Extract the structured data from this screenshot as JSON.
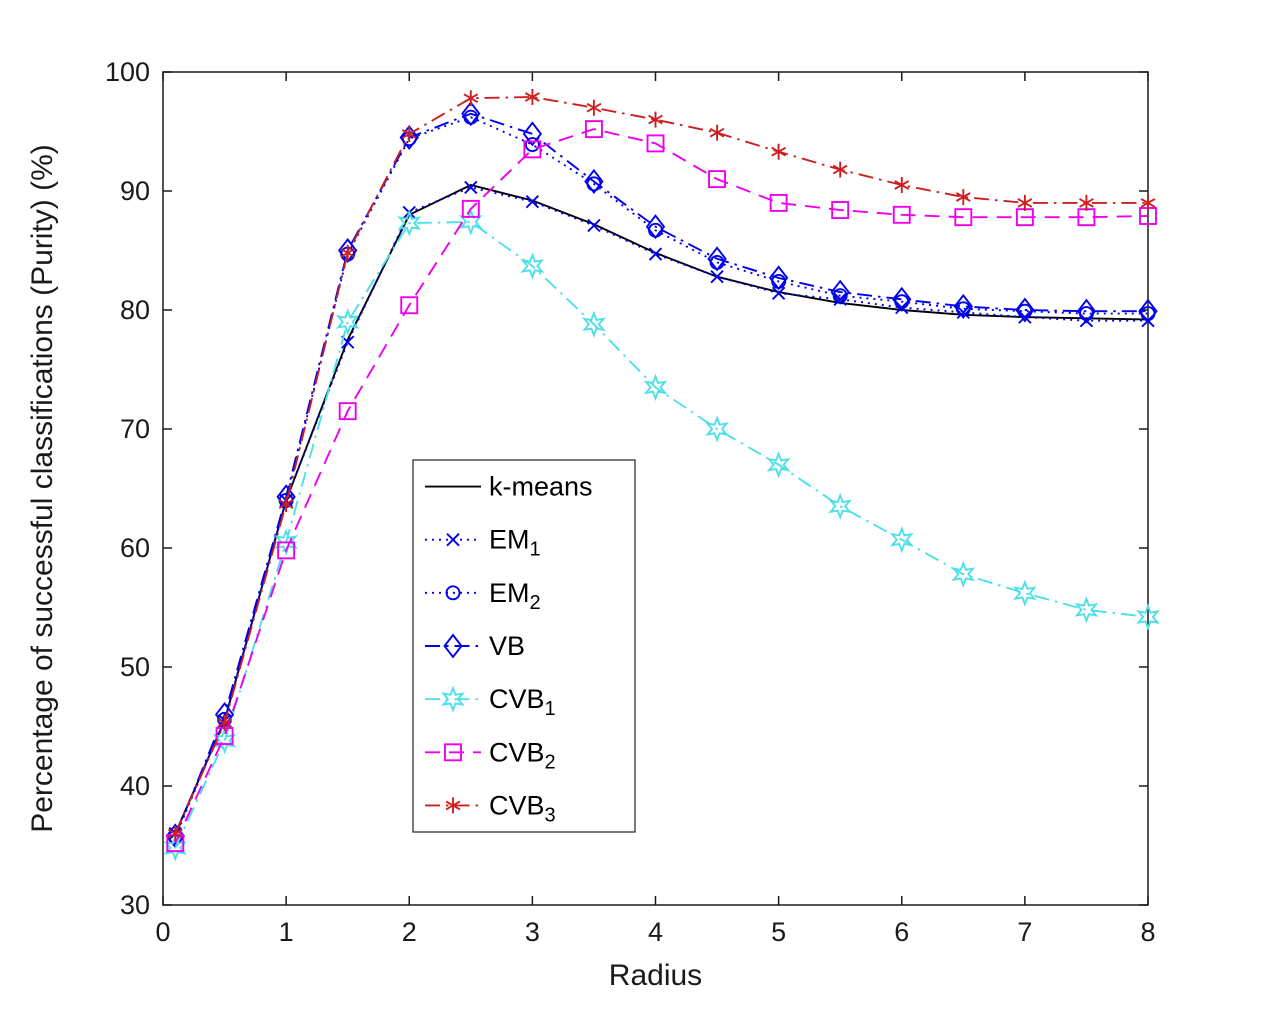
{
  "figure": {
    "background": "#ffffff",
    "axis_color": "#1a1a1a",
    "legend_background": "#ffffff",
    "legend_border": "#333333"
  },
  "chart_data": {
    "type": "line",
    "title": "",
    "xlabel": "Radius",
    "ylabel": "Percentage of successful classifications (Purity) (%)",
    "xlim": [
      0,
      8
    ],
    "ylim": [
      30,
      100
    ],
    "xticks": [
      0,
      1,
      2,
      3,
      4,
      5,
      6,
      7,
      8
    ],
    "yticks": [
      30,
      40,
      50,
      60,
      70,
      80,
      90,
      100
    ],
    "grid": false,
    "legend_position": "inside-lower-center",
    "x": [
      0.1,
      0.5,
      1,
      1.5,
      2,
      2.5,
      3,
      3.5,
      4,
      4.5,
      5,
      5.5,
      6,
      6.5,
      7,
      7.5,
      8
    ],
    "series": [
      {
        "name": "k-means",
        "sub": "",
        "color": "#000000",
        "linestyle": "solid",
        "marker": "none",
        "values": [
          36.0,
          45.5,
          64.0,
          77.5,
          88.0,
          90.5,
          89.2,
          87.2,
          84.8,
          82.8,
          81.5,
          80.6,
          80.0,
          79.6,
          79.4,
          79.3,
          79.2
        ]
      },
      {
        "name": "EM",
        "sub": "1",
        "color": "#0000ee",
        "linestyle": "dotted",
        "marker": "x",
        "values": [
          36.0,
          45.5,
          64.0,
          77.3,
          88.2,
          90.3,
          89.1,
          87.1,
          84.7,
          82.8,
          81.4,
          80.9,
          80.2,
          79.8,
          79.4,
          79.1,
          79.1
        ]
      },
      {
        "name": "EM",
        "sub": "2",
        "color": "#0000ee",
        "linestyle": "dotted",
        "marker": "circle",
        "values": [
          35.7,
          45.6,
          64.0,
          84.7,
          94.4,
          96.2,
          93.9,
          90.6,
          86.7,
          84.0,
          82.4,
          81.2,
          80.7,
          80.1,
          79.9,
          79.7,
          79.7
        ]
      },
      {
        "name": "VB",
        "sub": "",
        "color": "#0000ee",
        "linestyle": "dashdot",
        "marker": "diamond",
        "values": [
          35.8,
          46.0,
          64.3,
          85.0,
          94.5,
          96.5,
          94.8,
          90.8,
          87.0,
          84.3,
          82.7,
          81.5,
          80.9,
          80.3,
          80.0,
          79.9,
          79.9
        ]
      },
      {
        "name": "CVB",
        "sub": "1",
        "color": "#4de0e6",
        "linestyle": "dashdot",
        "marker": "star",
        "values": [
          34.8,
          43.8,
          60.5,
          79.0,
          87.3,
          87.4,
          83.7,
          78.8,
          73.5,
          70.0,
          67.0,
          63.5,
          60.7,
          57.8,
          56.2,
          54.8,
          54.2
        ]
      },
      {
        "name": "CVB",
        "sub": "2",
        "color": "#ee00ee",
        "linestyle": "dashed",
        "marker": "square",
        "values": [
          35.2,
          44.2,
          59.8,
          71.5,
          80.4,
          88.5,
          93.5,
          95.2,
          94.0,
          91.0,
          89.0,
          88.4,
          88.0,
          87.8,
          87.8,
          87.8,
          87.9
        ]
      },
      {
        "name": "CVB",
        "sub": "3",
        "color": "#cc2020",
        "linestyle": "dashdot",
        "marker": "asterisk",
        "values": [
          36.0,
          45.3,
          63.7,
          84.8,
          94.8,
          97.8,
          97.9,
          97.0,
          96.0,
          94.9,
          93.3,
          91.8,
          90.5,
          89.5,
          89.0,
          89.0,
          89.0
        ]
      }
    ]
  }
}
